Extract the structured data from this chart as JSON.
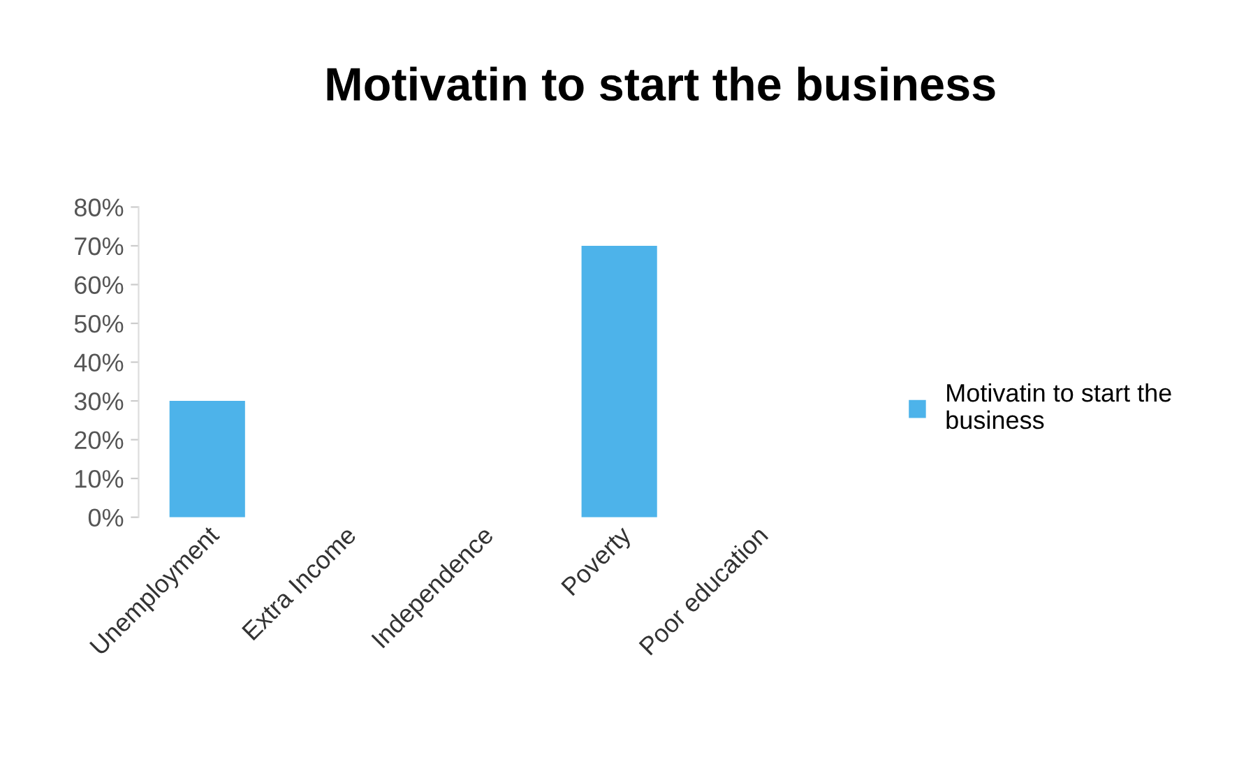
{
  "chart_data": {
    "type": "bar",
    "title": "Motivatin to start the business",
    "categories": [
      "Unemployment",
      "Extra Income",
      "Independence",
      "Poverty",
      "Poor education"
    ],
    "series": [
      {
        "name": "Motivatin to start the business",
        "color": "#4db3ea",
        "values": [
          30,
          0,
          0,
          70,
          0
        ]
      }
    ],
    "ylim": [
      0,
      80
    ],
    "yticks": [
      {
        "value": 0,
        "label": "0%"
      },
      {
        "value": 10,
        "label": "10%"
      },
      {
        "value": 20,
        "label": "20%"
      },
      {
        "value": 30,
        "label": "30%"
      },
      {
        "value": 40,
        "label": "40%"
      },
      {
        "value": 50,
        "label": "50%"
      },
      {
        "value": 60,
        "label": "60%"
      },
      {
        "value": 70,
        "label": "70%"
      },
      {
        "value": 80,
        "label": "80%"
      }
    ],
    "grid": false,
    "legend": "right"
  }
}
